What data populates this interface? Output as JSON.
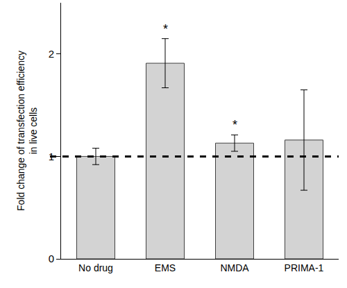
{
  "chart_data": {
    "type": "bar",
    "ylabel": [
      "Fold change of transfection efficiency",
      "in live cells"
    ],
    "categories": [
      "No drug",
      "EMS",
      "NMDA",
      "PRIMA-1"
    ],
    "values": [
      1.0,
      1.91,
      1.13,
      1.16
    ],
    "errors": [
      0.08,
      0.24,
      0.08,
      0.49
    ],
    "color": "#d3d3d3",
    "ylim": [
      0,
      2.5
    ],
    "yticks": [
      0,
      1,
      2
    ],
    "grid": false,
    "reference_line": 1,
    "annotations": [
      {
        "category": "EMS",
        "text": "*"
      },
      {
        "category": "NMDA",
        "text": "*"
      }
    ]
  }
}
